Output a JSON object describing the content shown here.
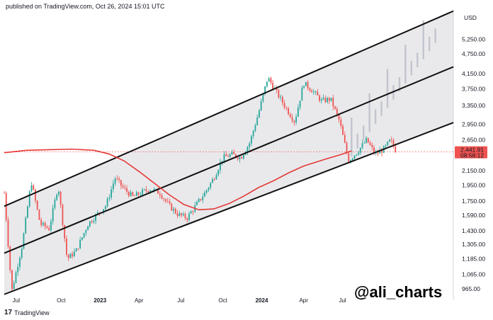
{
  "header": {
    "published": "published on TradingView.com, Oct 26, 2024 15:01 UTC"
  },
  "watermark": "@ali_charts",
  "logo": {
    "mark": "17",
    "text": "TradingView"
  },
  "chart_data": {
    "type": "candlestick",
    "axis": {
      "unit": "USD",
      "y_ticks": [
        "5,250.00",
        "4,750.00",
        "4,150.00",
        "3,750.00",
        "3,350.00",
        "2,950.00",
        "2,650.00",
        "2,150.00",
        "1,950.00",
        "1,750.00",
        "1,590.00",
        "1,430.00",
        "1,305.00",
        "1,185.00",
        "1,065.00",
        "965.00"
      ],
      "x_ticks": [
        {
          "label": "Jul",
          "bold": false
        },
        {
          "label": "Oct",
          "bold": false
        },
        {
          "label": "2023",
          "bold": true
        },
        {
          "label": "Apr",
          "bold": false
        },
        {
          "label": "Jul",
          "bold": false
        },
        {
          "label": "Oct",
          "bold": false
        },
        {
          "label": "2024",
          "bold": true
        },
        {
          "label": "Apr",
          "bold": false
        },
        {
          "label": "Jul",
          "bold": false
        }
      ],
      "y_scale": "log",
      "ylim": [
        920,
        6400
      ]
    },
    "current_price": {
      "price": "2,441.91",
      "countdown": "08:58:12",
      "value": 2441.91
    },
    "channel": {
      "upper": [
        [
          0,
          1690
        ],
        [
          300,
          6350
        ]
      ],
      "middle": [
        [
          0,
          1230
        ],
        [
          300,
          4350
        ]
      ],
      "lower": [
        [
          0,
          930
        ],
        [
          300,
          2980
        ]
      ]
    },
    "moving_average": [
      [
        0,
        2430
      ],
      [
        15,
        2470
      ],
      [
        30,
        2480
      ],
      [
        45,
        2490
      ],
      [
        60,
        2470
      ],
      [
        70,
        2410
      ],
      [
        80,
        2300
      ],
      [
        90,
        2140
      ],
      [
        100,
        1980
      ],
      [
        110,
        1830
      ],
      [
        120,
        1710
      ],
      [
        130,
        1650
      ],
      [
        140,
        1660
      ],
      [
        150,
        1720
      ],
      [
        160,
        1810
      ],
      [
        170,
        1920
      ],
      [
        180,
        2010
      ],
      [
        190,
        2120
      ],
      [
        200,
        2220
      ],
      [
        215,
        2330
      ],
      [
        225,
        2400
      ],
      [
        232,
        2460
      ]
    ],
    "projection": {
      "start": [
        232,
        2550
      ],
      "end": [
        288,
        5500
      ]
    },
    "candles_key_points": [
      [
        0,
        1850
      ],
      [
        5,
        950
      ],
      [
        12,
        1300
      ],
      [
        18,
        2000
      ],
      [
        24,
        1500
      ],
      [
        30,
        1450
      ],
      [
        36,
        1950
      ],
      [
        42,
        1180
      ],
      [
        48,
        1250
      ],
      [
        56,
        1500
      ],
      [
        62,
        1600
      ],
      [
        68,
        1700
      ],
      [
        74,
        2050
      ],
      [
        80,
        1900
      ],
      [
        86,
        1800
      ],
      [
        92,
        1860
      ],
      [
        98,
        1900
      ],
      [
        104,
        1850
      ],
      [
        110,
        1700
      ],
      [
        116,
        1600
      ],
      [
        122,
        1560
      ],
      [
        128,
        1700
      ],
      [
        134,
        1850
      ],
      [
        140,
        2050
      ],
      [
        146,
        2350
      ],
      [
        152,
        2400
      ],
      [
        158,
        2350
      ],
      [
        164,
        2600
      ],
      [
        170,
        3200
      ],
      [
        176,
        4050
      ],
      [
        182,
        3650
      ],
      [
        188,
        3300
      ],
      [
        194,
        3000
      ],
      [
        200,
        3900
      ],
      [
        206,
        3700
      ],
      [
        212,
        3450
      ],
      [
        218,
        3500
      ],
      [
        224,
        3000
      ],
      [
        230,
        2300
      ],
      [
        236,
        2450
      ],
      [
        242,
        2650
      ],
      [
        248,
        2400
      ],
      [
        254,
        2500
      ],
      [
        258,
        2650
      ],
      [
        262,
        2442
      ]
    ],
    "colors": {
      "up": "#26a69a",
      "down": "#ef5350",
      "ma": "#e53935",
      "channel": "#111111",
      "channel_fill": "#e9e9ec",
      "projection": "#b8bcc6"
    }
  }
}
